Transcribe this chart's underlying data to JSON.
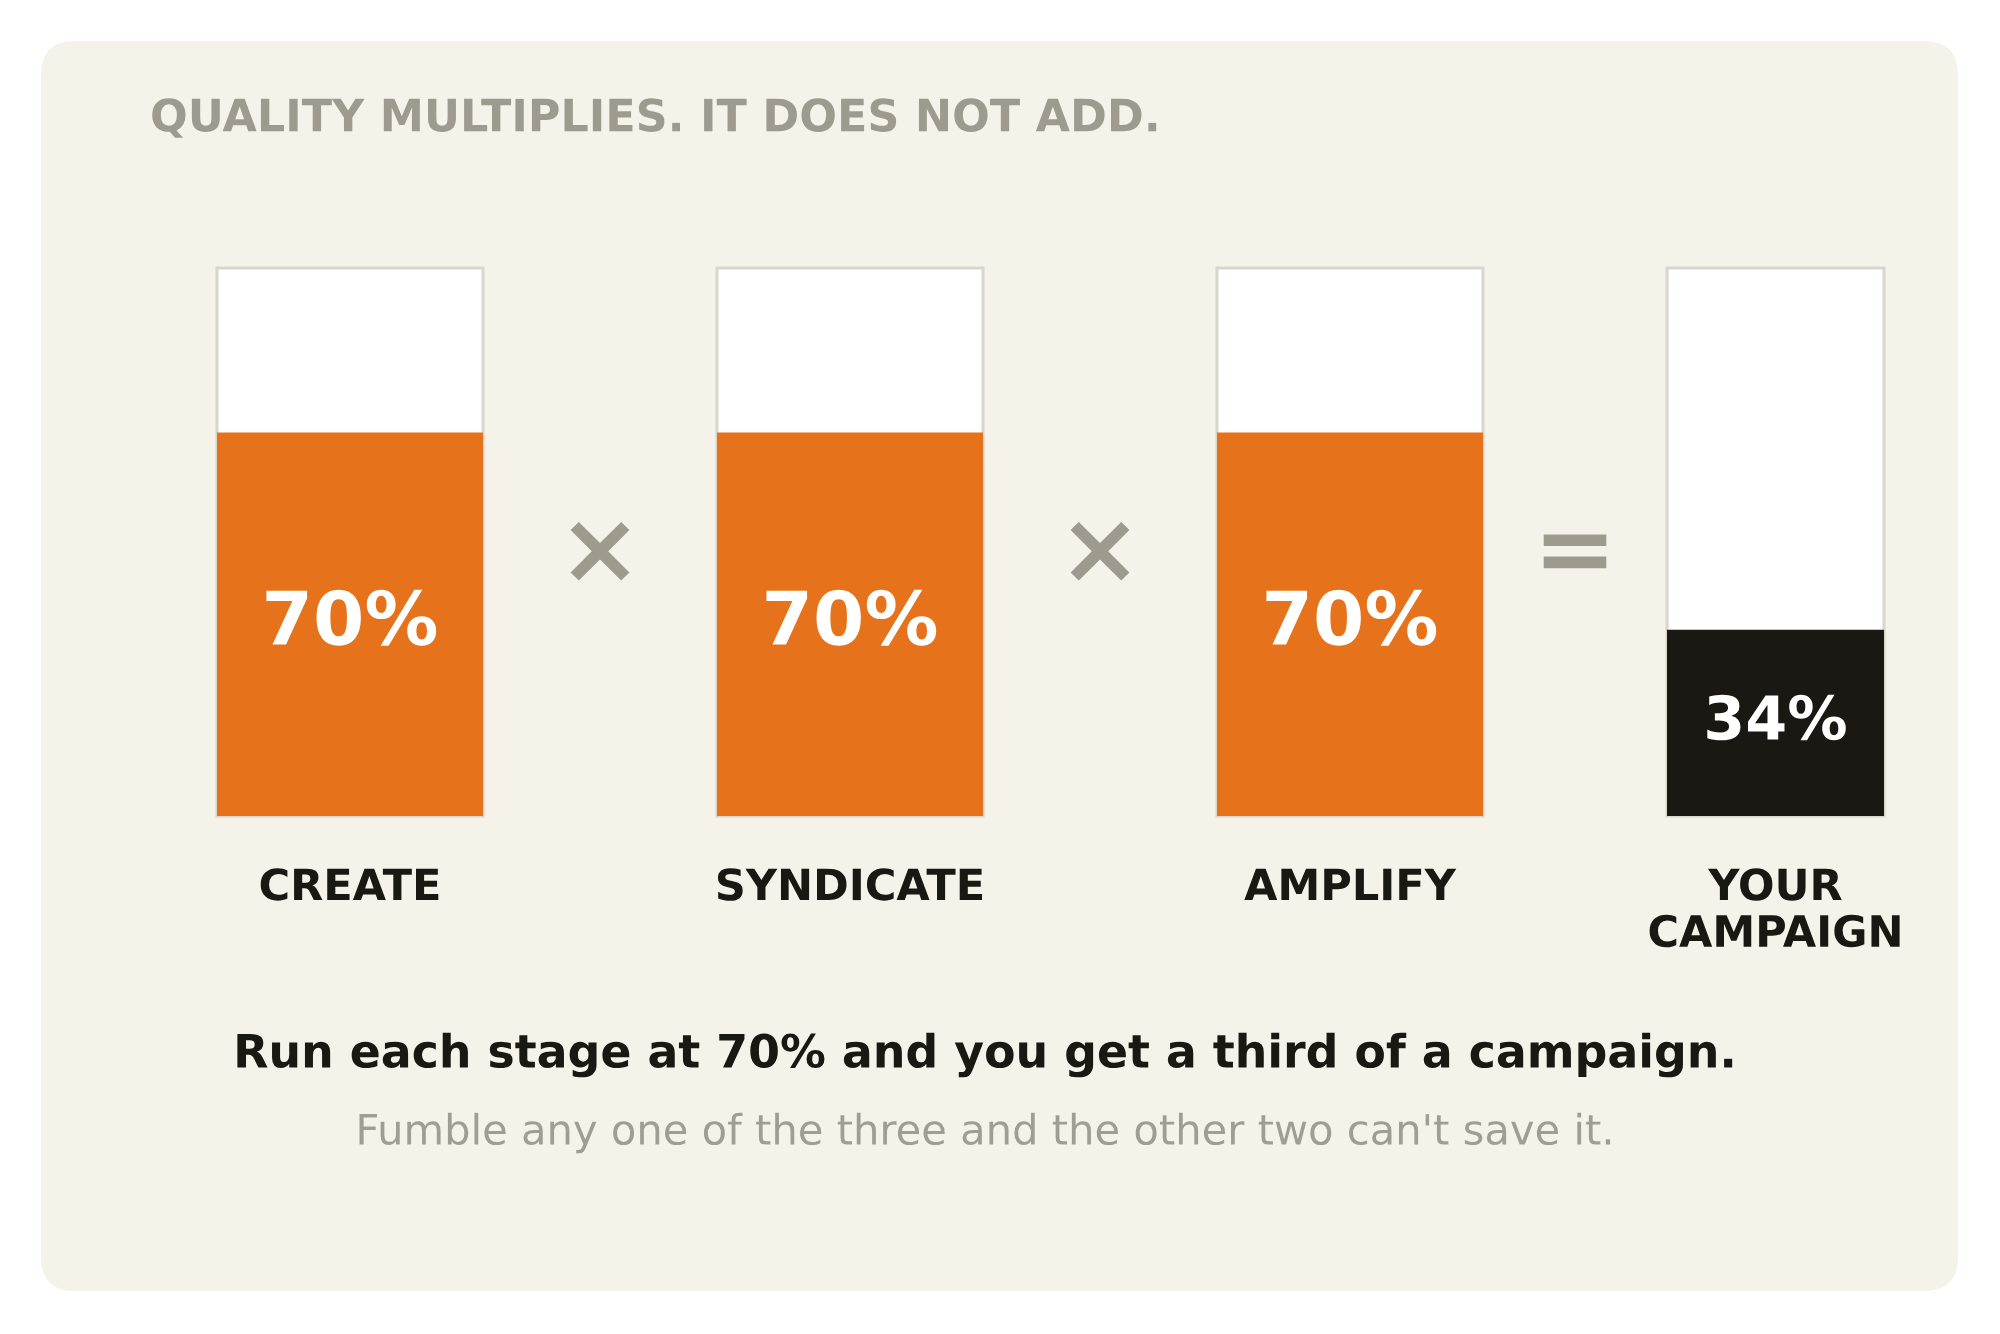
{
  "chart_data": {
    "type": "bar",
    "title": "QUALITY MULTIPLIES. IT DOES NOT ADD.",
    "categories": [
      "CREATE",
      "SYNDICATE",
      "AMPLIFY",
      "YOUR CAMPAIGN"
    ],
    "values": [
      70,
      70,
      70,
      34
    ],
    "colors": [
      "#e6731b",
      "#e6731b",
      "#e6731b",
      "#1a1812"
    ],
    "value_labels": [
      "70%",
      "70%",
      "70%",
      "34%"
    ],
    "ylim": [
      0,
      100
    ],
    "tick_labels": "x",
    "annotations": [
      "×",
      "×",
      "=",
      "Run each stage at 70% and you get a third of a campaign.",
      "Fumble any one of the three and the other two can't save it."
    ]
  }
}
